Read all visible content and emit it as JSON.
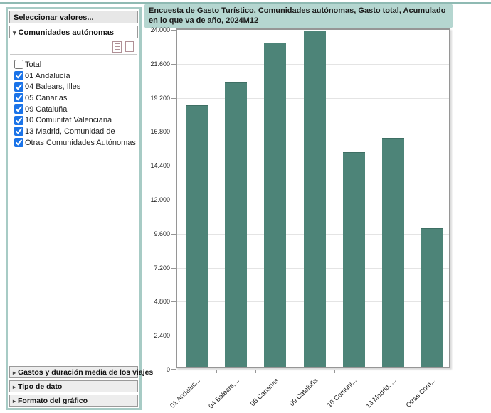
{
  "colors": {
    "accent_teal": "#8fbab3",
    "panel_border": "#a7cbc5",
    "title_background": "#b5d6d0",
    "bar_fill": "#4d8478",
    "checkbox_blue": "#1a73e8"
  },
  "sidebar": {
    "title": "Seleccionar valores...",
    "section": {
      "label": "Comunidades autónomas",
      "expanded_arrow": "▾"
    },
    "icons": [
      "select-all-icon",
      "deselect-all-icon"
    ],
    "items": [
      {
        "label": "Total",
        "checked": false
      },
      {
        "label": "01 Andalucía",
        "checked": true
      },
      {
        "label": "04 Balears, Illes",
        "checked": true
      },
      {
        "label": "05 Canarias",
        "checked": true
      },
      {
        "label": "09 Cataluña",
        "checked": true
      },
      {
        "label": "10 Comunitat Valenciana",
        "checked": true
      },
      {
        "label": "13 Madrid, Comunidad de",
        "checked": true
      },
      {
        "label": "Otras Comunidades Autónomas",
        "checked": true
      }
    ],
    "collapsed_sections": [
      "Gastos y duración media de los viajes",
      "Tipo de dato",
      "Formato del gráfico"
    ],
    "collapsed_arrow": "▸"
  },
  "chart_data": {
    "type": "bar",
    "title": "Encuesta de Gasto Turístico, Comunidades autónomas, Gasto total, Acumulado en lo que va de año, 2024M12",
    "categories": [
      "01 Andaluc...",
      "04 Balears,...",
      "05 Canarias",
      "09 Cataluña",
      "10 Comuni...",
      "13 Madrid, ...",
      "Otras Com..."
    ],
    "values": [
      18500,
      20100,
      22900,
      23750,
      15150,
      16150,
      9780
    ],
    "ylim": [
      0,
      24000
    ],
    "ytick_step": 2400,
    "ytick_labels": [
      "0",
      "2.400",
      "4.800",
      "7.200",
      "9.600",
      "12.000",
      "14.400",
      "16.800",
      "19.200",
      "21.600",
      "24.000"
    ],
    "grid": true,
    "legend": false,
    "bar_color": "#4d8478",
    "xlabel": "",
    "ylabel": ""
  }
}
